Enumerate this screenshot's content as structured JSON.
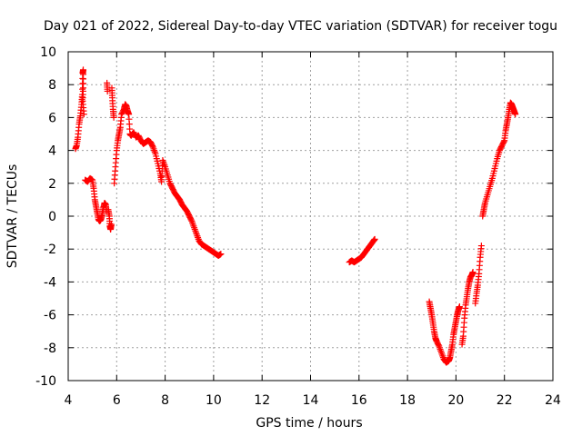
{
  "chart_data": {
    "type": "scatter",
    "title": "Day 021 of 2022, Sidereal Day-to-day VTEC variation (SDTVAR) for receiver togu",
    "xlabel": "GPS time / hours",
    "ylabel": "SDTVAR / TECUs",
    "xlim": [
      4,
      24
    ],
    "ylim": [
      -10,
      10
    ],
    "xticks": [
      4,
      6,
      8,
      10,
      12,
      14,
      16,
      18,
      20,
      22,
      24
    ],
    "yticks": [
      -10,
      -8,
      -6,
      -4,
      -2,
      0,
      2,
      4,
      6,
      8,
      10
    ],
    "grid": true,
    "marker": "+",
    "color": "#ff0000",
    "series": [
      {
        "name": "SDTVAR",
        "segments": [
          [
            [
              4.3,
              4.1
            ],
            [
              4.35,
              4.3
            ],
            [
              4.4,
              4.8
            ],
            [
              4.45,
              5.6
            ],
            [
              4.5,
              6.1
            ],
            [
              4.55,
              6.8
            ],
            [
              4.58,
              7.4
            ],
            [
              4.6,
              8.7
            ],
            [
              4.62,
              8.9
            ],
            [
              4.62,
              7.8
            ],
            [
              4.6,
              7.0
            ],
            [
              4.65,
              6.2
            ],
            [
              4.7,
              2.2
            ],
            [
              4.8,
              2.1
            ],
            [
              4.9,
              2.3
            ],
            [
              5.0,
              2.2
            ],
            [
              5.05,
              1.7
            ],
            [
              5.1,
              1.0
            ],
            [
              5.15,
              0.6
            ],
            [
              5.2,
              0.2
            ],
            [
              5.25,
              -0.2
            ],
            [
              5.3,
              -0.3
            ],
            [
              5.35,
              -0.2
            ],
            [
              5.4,
              0.1
            ],
            [
              5.45,
              0.5
            ],
            [
              5.5,
              0.8
            ],
            [
              5.55,
              0.7
            ],
            [
              5.58,
              0.3
            ],
            [
              5.6,
              8.1
            ],
            [
              5.62,
              7.6
            ],
            [
              5.65,
              0.4
            ],
            [
              5.7,
              0.0
            ],
            [
              5.72,
              -0.6
            ],
            [
              5.75,
              -0.8
            ],
            [
              5.78,
              -0.5
            ],
            [
              5.8,
              7.8
            ],
            [
              5.82,
              7.2
            ],
            [
              5.85,
              6.5
            ],
            [
              5.88,
              6.0
            ],
            [
              5.9,
              2.0
            ],
            [
              5.95,
              3.0
            ],
            [
              6.0,
              4.0
            ],
            [
              6.05,
              4.6
            ],
            [
              6.1,
              5.0
            ],
            [
              6.15,
              5.4
            ],
            [
              6.2,
              6.2
            ],
            [
              6.3,
              6.5
            ],
            [
              6.35,
              6.8
            ],
            [
              6.4,
              6.7
            ],
            [
              6.45,
              6.4
            ],
            [
              6.5,
              6.2
            ],
            [
              6.55,
              5.0
            ],
            [
              6.6,
              4.9
            ],
            [
              6.7,
              5.1
            ],
            [
              6.8,
              4.8
            ],
            [
              6.9,
              4.9
            ],
            [
              7.0,
              4.6
            ],
            [
              7.1,
              4.4
            ],
            [
              7.2,
              4.5
            ],
            [
              7.3,
              4.6
            ],
            [
              7.4,
              4.5
            ],
            [
              7.5,
              4.2
            ],
            [
              7.6,
              3.8
            ],
            [
              7.7,
              3.2
            ],
            [
              7.8,
              2.6
            ],
            [
              7.85,
              2.1
            ],
            [
              7.9,
              3.4
            ],
            [
              8.0,
              3.0
            ],
            [
              8.1,
              2.5
            ],
            [
              8.2,
              2.0
            ],
            [
              8.3,
              1.7
            ],
            [
              8.4,
              1.4
            ],
            [
              8.5,
              1.2
            ],
            [
              8.6,
              1.0
            ],
            [
              8.7,
              0.7
            ],
            [
              8.8,
              0.5
            ],
            [
              8.9,
              0.3
            ],
            [
              9.0,
              0.0
            ],
            [
              9.1,
              -0.3
            ],
            [
              9.2,
              -0.7
            ],
            [
              9.3,
              -1.1
            ],
            [
              9.4,
              -1.5
            ],
            [
              9.5,
              -1.7
            ],
            [
              9.6,
              -1.8
            ],
            [
              9.7,
              -1.9
            ],
            [
              9.8,
              -2.0
            ],
            [
              9.9,
              -2.1
            ],
            [
              10.0,
              -2.2
            ],
            [
              10.1,
              -2.3
            ],
            [
              10.2,
              -2.4
            ],
            [
              10.3,
              -2.3
            ]
          ],
          [
            [
              15.6,
              -2.8
            ],
            [
              15.7,
              -2.7
            ],
            [
              15.8,
              -2.8
            ],
            [
              15.9,
              -2.7
            ],
            [
              16.0,
              -2.6
            ],
            [
              16.1,
              -2.5
            ],
            [
              16.2,
              -2.3
            ],
            [
              16.3,
              -2.1
            ],
            [
              16.4,
              -1.9
            ],
            [
              16.5,
              -1.7
            ],
            [
              16.6,
              -1.5
            ],
            [
              16.65,
              -1.4
            ]
          ],
          [
            [
              18.9,
              -5.2
            ],
            [
              18.95,
              -5.6
            ],
            [
              19.0,
              -6.0
            ],
            [
              19.05,
              -6.5
            ],
            [
              19.1,
              -7.0
            ],
            [
              19.15,
              -7.4
            ],
            [
              19.2,
              -7.6
            ],
            [
              19.3,
              -7.9
            ],
            [
              19.4,
              -8.3
            ],
            [
              19.5,
              -8.7
            ],
            [
              19.6,
              -8.9
            ],
            [
              19.7,
              -8.8
            ],
            [
              19.75,
              -8.6
            ],
            [
              19.8,
              -8.2
            ],
            [
              19.85,
              -7.8
            ],
            [
              19.9,
              -7.2
            ],
            [
              19.95,
              -6.8
            ],
            [
              20.0,
              -6.4
            ],
            [
              20.05,
              -6.0
            ],
            [
              20.1,
              -5.7
            ],
            [
              20.15,
              -5.5
            ],
            [
              20.25,
              -7.8
            ],
            [
              20.3,
              -7.3
            ],
            [
              20.35,
              -6.2
            ],
            [
              20.4,
              -5.4
            ],
            [
              20.45,
              -4.9
            ],
            [
              20.5,
              -4.4
            ],
            [
              20.55,
              -4.0
            ],
            [
              20.6,
              -3.7
            ],
            [
              20.65,
              -3.6
            ],
            [
              20.7,
              -3.4
            ],
            [
              20.8,
              -5.3
            ],
            [
              20.85,
              -4.7
            ],
            [
              20.9,
              -4.2
            ],
            [
              20.95,
              -3.5
            ],
            [
              21.0,
              -2.5
            ],
            [
              21.05,
              -1.8
            ],
            [
              21.1,
              0.0
            ],
            [
              21.15,
              0.4
            ],
            [
              21.2,
              0.8
            ],
            [
              21.3,
              1.3
            ],
            [
              21.4,
              1.8
            ],
            [
              21.5,
              2.3
            ],
            [
              21.6,
              2.9
            ],
            [
              21.7,
              3.5
            ],
            [
              21.8,
              4.0
            ],
            [
              21.9,
              4.3
            ],
            [
              22.0,
              4.6
            ],
            [
              22.05,
              5.2
            ],
            [
              22.1,
              5.6
            ],
            [
              22.15,
              6.0
            ],
            [
              22.2,
              6.5
            ],
            [
              22.25,
              6.9
            ],
            [
              22.3,
              6.8
            ],
            [
              22.35,
              6.6
            ],
            [
              22.4,
              6.4
            ],
            [
              22.45,
              6.2
            ]
          ]
        ]
      }
    ]
  }
}
